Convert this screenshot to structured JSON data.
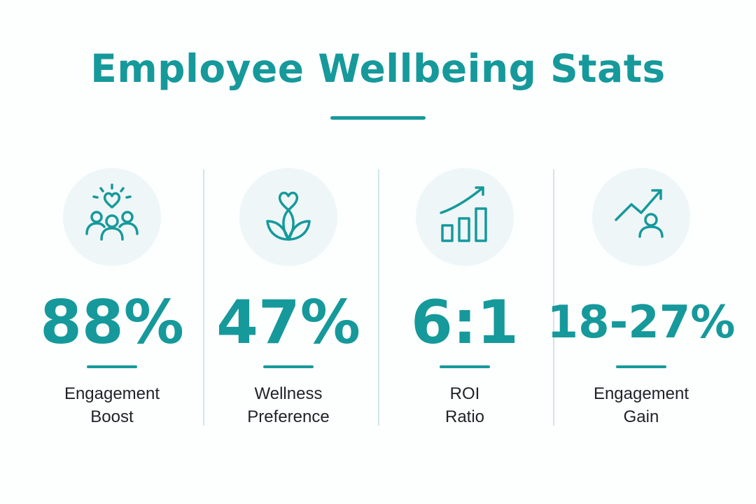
{
  "title": "Employee Wellbeing Stats",
  "accent_color": "#16999b",
  "stats": [
    {
      "value": "88%",
      "label_line1": "Engagement",
      "label_line2": "Boost",
      "icon": "people-heart-icon"
    },
    {
      "value": "47%",
      "label_line1": "Wellness",
      "label_line2": "Preference",
      "icon": "lotus-heart-icon"
    },
    {
      "value": "6:1",
      "label_line1": "ROI",
      "label_line2": "Ratio",
      "icon": "bar-chart-growth-icon"
    },
    {
      "value": "18-27%",
      "label_line1": "Engagement",
      "label_line2": "Gain",
      "icon": "person-trend-up-icon"
    }
  ]
}
